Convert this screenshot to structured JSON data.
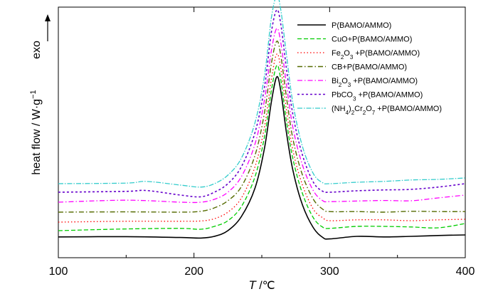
{
  "chart_data": {
    "type": "line",
    "title": "",
    "xlabel_italic": "T",
    "xlabel_rest": " /℃",
    "ylabel": "heat flow / W·g",
    "ylabel_sup": "−1",
    "exo_label": "exo",
    "xlim": [
      100,
      400
    ],
    "x_ticks": [
      "100",
      "200",
      "300",
      "400"
    ],
    "y_ticks_visible": false,
    "grid": false,
    "legend_placement": "top-right",
    "series": [
      {
        "name": "P(BAMO/AMMO)",
        "legend": [
          {
            "t": "P(BAMO/AMMO)"
          }
        ],
        "color": "#000000",
        "dash": "",
        "width": 1.6,
        "offset": 0.0,
        "peak_height": 63,
        "points": [
          [
            100,
            0.8
          ],
          [
            150,
            0.9
          ],
          [
            190,
            0.6
          ],
          [
            205,
            0.4
          ],
          [
            215,
            1.0
          ],
          [
            225,
            3.0
          ],
          [
            235,
            8.0
          ],
          [
            245,
            18.0
          ],
          [
            252,
            32.0
          ],
          [
            257,
            48.0
          ],
          [
            261,
            57.0
          ],
          [
            264,
            52.0
          ],
          [
            268,
            38.0
          ],
          [
            273,
            24.0
          ],
          [
            280,
            12.0
          ],
          [
            288,
            4.0
          ],
          [
            295,
            0.6
          ],
          [
            300,
            0.1
          ],
          [
            320,
            1.0
          ],
          [
            340,
            0.8
          ],
          [
            360,
            1.0
          ],
          [
            380,
            1.3
          ],
          [
            400,
            1.5
          ]
        ]
      },
      {
        "name": "CuO+P(BAMO/AMMO)",
        "legend": [
          {
            "t": "CuO+P(BAMO/AMMO)"
          }
        ],
        "color": "#00cc00",
        "dash": "6,3",
        "width": 1.3,
        "offset": 3.0,
        "peak_height": 65,
        "points": [
          [
            100,
            0.0
          ],
          [
            150,
            0.6
          ],
          [
            190,
            0.8
          ],
          [
            205,
            0.5
          ],
          [
            215,
            1.5
          ],
          [
            225,
            3.5
          ],
          [
            235,
            8.5
          ],
          [
            245,
            19.0
          ],
          [
            252,
            33.0
          ],
          [
            257,
            49.0
          ],
          [
            261,
            58.0
          ],
          [
            264,
            53.0
          ],
          [
            268,
            39.0
          ],
          [
            273,
            25.0
          ],
          [
            280,
            13.0
          ],
          [
            288,
            4.5
          ],
          [
            295,
            1.2
          ],
          [
            300,
            0.8
          ],
          [
            320,
            1.5
          ],
          [
            340,
            1.5
          ],
          [
            360,
            1.3
          ],
          [
            380,
            1.0
          ],
          [
            400,
            2.5
          ]
        ]
      },
      {
        "name": "Fe2O3 +P(BAMO/AMMO)",
        "legend": [
          {
            "t": "Fe"
          },
          {
            "t": "2",
            "sub": true
          },
          {
            "t": "O"
          },
          {
            "t": "3",
            "sub": true
          },
          {
            "t": " +P(BAMO/AMMO)"
          }
        ],
        "color": "#ff0000",
        "dash": "1.5,3",
        "width": 1.3,
        "offset": 6.0,
        "peak_height": 66,
        "points": [
          [
            100,
            0.0
          ],
          [
            150,
            0.3
          ],
          [
            190,
            0.3
          ],
          [
            205,
            0.4
          ],
          [
            215,
            1.2
          ],
          [
            225,
            3.5
          ],
          [
            235,
            8.5
          ],
          [
            245,
            19.5
          ],
          [
            252,
            33.5
          ],
          [
            257,
            50.0
          ],
          [
            261,
            59.0
          ],
          [
            264,
            54.0
          ],
          [
            268,
            40.0
          ],
          [
            273,
            25.0
          ],
          [
            280,
            13.0
          ],
          [
            288,
            4.5
          ],
          [
            295,
            1.5
          ],
          [
            300,
            0.5
          ],
          [
            320,
            0.8
          ],
          [
            340,
            0.8
          ],
          [
            360,
            0.5
          ],
          [
            380,
            0.8
          ],
          [
            400,
            1.0
          ]
        ]
      },
      {
        "name": "CB+P(BAMO/AMMO)",
        "legend": [
          {
            "t": "CB+P(BAMO/AMMO)"
          }
        ],
        "color": "#556b00",
        "dash": "7,3,1.5,3",
        "width": 1.4,
        "offset": 9.5,
        "peak_height": 69,
        "points": [
          [
            100,
            0.0
          ],
          [
            150,
            0.1
          ],
          [
            190,
            0.0
          ],
          [
            205,
            0.3
          ],
          [
            215,
            1.5
          ],
          [
            225,
            4.0
          ],
          [
            235,
            9.0
          ],
          [
            245,
            20.0
          ],
          [
            252,
            35.0
          ],
          [
            257,
            52.0
          ],
          [
            261,
            60.0
          ],
          [
            264,
            55.0
          ],
          [
            268,
            41.0
          ],
          [
            273,
            25.5
          ],
          [
            280,
            13.0
          ],
          [
            288,
            4.5
          ],
          [
            295,
            1.0
          ],
          [
            300,
            0.2
          ],
          [
            320,
            0.2
          ],
          [
            340,
            0.0
          ],
          [
            360,
            0.3
          ],
          [
            380,
            0.2
          ],
          [
            400,
            0.2
          ]
        ]
      },
      {
        "name": "Bi2O3 +P(BAMO/AMMO)",
        "legend": [
          {
            "t": "Bi"
          },
          {
            "t": "2",
            "sub": true
          },
          {
            "t": "O"
          },
          {
            "t": "3",
            "sub": true
          },
          {
            "t": " +P(BAMO/AMMO)"
          }
        ],
        "color": "#ff00ff",
        "dash": "7,3,1.5,3",
        "width": 1.3,
        "offset": 13.0,
        "peak_height": 72,
        "points": [
          [
            100,
            0.0
          ],
          [
            150,
            0.7
          ],
          [
            190,
            0.0
          ],
          [
            205,
            0.0
          ],
          [
            215,
            1.0
          ],
          [
            225,
            3.5
          ],
          [
            235,
            9.0
          ],
          [
            245,
            20.5
          ],
          [
            252,
            36.0
          ],
          [
            257,
            53.0
          ],
          [
            261,
            61.0
          ],
          [
            264,
            56.0
          ],
          [
            268,
            42.0
          ],
          [
            273,
            26.0
          ],
          [
            280,
            13.0
          ],
          [
            288,
            4.0
          ],
          [
            295,
            0.5
          ],
          [
            300,
            0.2
          ],
          [
            320,
            0.4
          ],
          [
            340,
            0.6
          ],
          [
            360,
            0.5
          ],
          [
            380,
            1.5
          ],
          [
            400,
            2.5
          ]
        ]
      },
      {
        "name": "PbCO3 +P(BAMO/AMMO)",
        "legend": [
          {
            "t": "PbCO"
          },
          {
            "t": "3",
            "sub": true
          },
          {
            "t": " +P(BAMO/AMMO)"
          }
        ],
        "color": "#6600cc",
        "dash": "3,3",
        "width": 1.6,
        "offset": 16.5,
        "peak_height": 77,
        "points": [
          [
            100,
            0.0
          ],
          [
            150,
            0.3
          ],
          [
            165,
            0.6
          ],
          [
            190,
            -1.0
          ],
          [
            205,
            -1.6
          ],
          [
            215,
            0.0
          ],
          [
            225,
            3.0
          ],
          [
            235,
            9.0
          ],
          [
            245,
            21.0
          ],
          [
            252,
            37.0
          ],
          [
            257,
            56.0
          ],
          [
            261,
            64.0
          ],
          [
            264,
            59.0
          ],
          [
            268,
            44.0
          ],
          [
            273,
            27.0
          ],
          [
            280,
            13.0
          ],
          [
            288,
            3.5
          ],
          [
            295,
            0.3
          ],
          [
            300,
            0.0
          ],
          [
            320,
            0.5
          ],
          [
            340,
            0.8
          ],
          [
            360,
            1.0
          ],
          [
            380,
            1.8
          ],
          [
            400,
            3.0
          ]
        ]
      },
      {
        "name": "(NH4)2Cr2O7 +P(BAMO/AMMO)",
        "legend": [
          {
            "t": "(NH"
          },
          {
            "t": "4",
            "sub": true
          },
          {
            "t": ")"
          },
          {
            "t": "2",
            "sub": true
          },
          {
            "t": "Cr"
          },
          {
            "t": "2",
            "sub": true
          },
          {
            "t": "O"
          },
          {
            "t": "7",
            "sub": true
          },
          {
            "t": " +P(BAMO/AMMO)"
          }
        ],
        "color": "#33cccc",
        "dash": "7,2,1.5,2",
        "width": 1.3,
        "offset": 19.5,
        "peak_height": 80,
        "points": [
          [
            100,
            0.0
          ],
          [
            150,
            0.2
          ],
          [
            165,
            0.8
          ],
          [
            190,
            -0.5
          ],
          [
            205,
            -1.2
          ],
          [
            215,
            0.0
          ],
          [
            225,
            3.0
          ],
          [
            235,
            9.0
          ],
          [
            245,
            21.5
          ],
          [
            252,
            38.0
          ],
          [
            257,
            58.0
          ],
          [
            261,
            66.0
          ],
          [
            264,
            61.0
          ],
          [
            268,
            46.0
          ],
          [
            273,
            28.0
          ],
          [
            280,
            13.0
          ],
          [
            288,
            3.5
          ],
          [
            295,
            0.3
          ],
          [
            300,
            0.0
          ],
          [
            320,
            0.5
          ],
          [
            340,
            0.8
          ],
          [
            360,
            1.3
          ],
          [
            380,
            1.5
          ],
          [
            400,
            2.0
          ]
        ]
      }
    ]
  }
}
